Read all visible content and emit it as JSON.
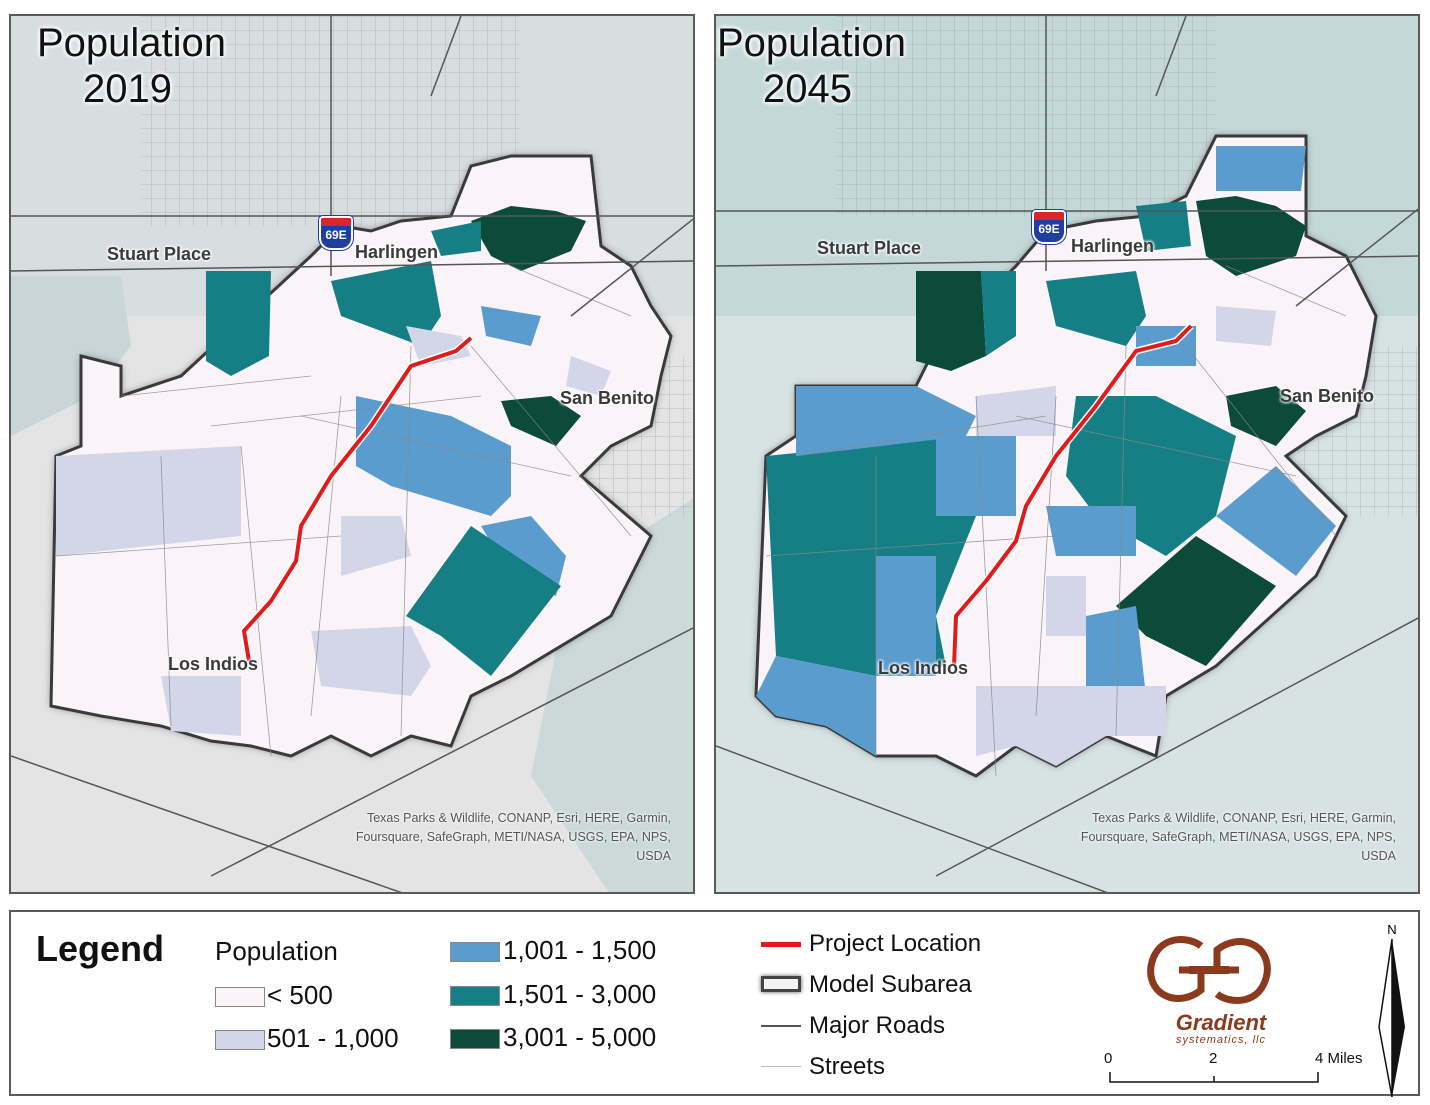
{
  "maps": [
    {
      "title_line1": "Population",
      "title_line2": "2019",
      "labels": {
        "stuart_place": "Stuart Place",
        "harlingen": "Harlingen",
        "san_benito": "San Benito",
        "los_indios": "Los Indios"
      },
      "highway_shield": "69E"
    },
    {
      "title_line1": "Population",
      "title_line2": "2045",
      "labels": {
        "stuart_place": "Stuart Place",
        "harlingen": "Harlingen",
        "san_benito": "San Benito",
        "los_indios": "Los Indios"
      },
      "highway_shield": "69E"
    }
  ],
  "attribution": "Texas Parks & Wildlife, CONANP, Esri, HERE, Garmin, Foursquare, SafeGraph, METI/NASA, USGS, EPA, NPS, USDA",
  "legend": {
    "title": "Legend",
    "population_heading": "Population",
    "classes": [
      {
        "label": "< 500",
        "color": "#faf4f8"
      },
      {
        "label": "501 - 1,000",
        "color": "#d3d6e8"
      },
      {
        "label": "1,001 - 1,500",
        "color": "#5b9ccf"
      },
      {
        "label": "1,501 - 3,000",
        "color": "#167f86"
      },
      {
        "label": "3,001 - 5,000",
        "color": "#0c4a3a"
      }
    ],
    "symbols": {
      "project_location": "Project Location",
      "model_subarea": "Model Subarea",
      "major_roads": "Major Roads",
      "streets": "Streets"
    },
    "project_color": "#e31a1c"
  },
  "logo": {
    "name": "Gradient",
    "subtitle": "systematics, llc",
    "color": "#8b3a1e"
  },
  "scale_bar": {
    "tick_0": "0",
    "tick_2": "2",
    "tick_4": "4 Miles"
  },
  "north_label": "N"
}
